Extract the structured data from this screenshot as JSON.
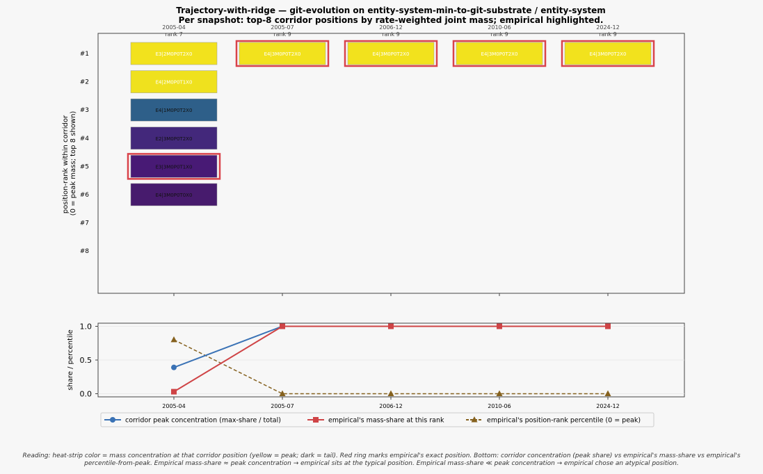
{
  "title_line1": "Trajectory-with-ridge — git-evolution  on  entity-system-min-to-git-substrate  /  entity-system",
  "title_line2": "Per snapshot: top-8 corridor positions by rate-weighted joint mass; empirical highlighted.",
  "caption_line1": "Reading: heat-strip color = mass concentration at that corridor position (yellow = peak; dark = tail).  Red ring marks empirical's exact position. Bottom: corridor concentration (peak share) vs empirical's mass-share vs empirical's",
  "caption_line2": "percentile-from-peak.  Empirical mass-share ≈ peak concentration → empirical sits at the typical position. Empirical mass-share ≪ peak concentration → empirical chose an atypical position.",
  "colors": {
    "empirical_ring": "#d9434a",
    "concentration": "#3a72b5",
    "mass_share": "#cf4446",
    "percentile": "#85611e"
  },
  "chart_data": [
    {
      "type": "heatmap",
      "ylabel": "position-rank within corridor\n(0 = peak mass; top 8 shown)",
      "rank_labels": [
        "#1",
        "#2",
        "#3",
        "#4",
        "#5",
        "#6",
        "#7",
        "#8"
      ],
      "snapshots": [
        {
          "date": "2005-04",
          "rank_label": "rank 7",
          "cells": [
            {
              "rank": 1,
              "label": "E3|2M0P0T2X0",
              "color": "#f2e21d",
              "empirical": false
            },
            {
              "rank": 2,
              "label": "E4|2M0P0T1X0",
              "color": "#efe11e",
              "empirical": false
            },
            {
              "rank": 3,
              "label": "E4|1M0P0T2X0",
              "color": "#2e5f89",
              "empirical": false
            },
            {
              "rank": 4,
              "label": "E2|3M0P0T2X0",
              "color": "#43287b",
              "empirical": false
            },
            {
              "rank": 5,
              "label": "E3|3M0P0T1X0",
              "color": "#481a75",
              "empirical": true
            },
            {
              "rank": 6,
              "label": "E4|3M0P0T0X0",
              "color": "#471b6d",
              "empirical": false
            }
          ]
        },
        {
          "date": "2005-07",
          "rank_label": "rank 9",
          "cells": [
            {
              "rank": 1,
              "label": "E4|3M0P0T2X0",
              "color": "#f2e21d",
              "empirical": true
            }
          ]
        },
        {
          "date": "2006-12",
          "rank_label": "rank 9",
          "cells": [
            {
              "rank": 1,
              "label": "E4|3M0P0T2X0",
              "color": "#f2e21d",
              "empirical": true
            }
          ]
        },
        {
          "date": "2010-06",
          "rank_label": "rank 9",
          "cells": [
            {
              "rank": 1,
              "label": "E4|3M0P0T2X0",
              "color": "#f2e21d",
              "empirical": true
            }
          ]
        },
        {
          "date": "2024-12",
          "rank_label": "rank 9",
          "cells": [
            {
              "rank": 1,
              "label": "E4|3M0P0T2X0",
              "color": "#f2e21d",
              "empirical": true
            }
          ]
        }
      ]
    },
    {
      "type": "line",
      "ylabel": "share / percentile",
      "categories": [
        "2005-04",
        "2005-07",
        "2006-12",
        "2010-06",
        "2024-12"
      ],
      "yticks": [
        "0.0",
        "0.5",
        "1.0"
      ],
      "ylim": [
        -0.05,
        1.05
      ],
      "series": [
        {
          "name": "corridor peak concentration  (max-share / total)",
          "values": [
            0.39,
            1.0,
            1.0,
            1.0,
            1.0
          ],
          "marker": "circle",
          "dash": false
        },
        {
          "name": "empirical's mass-share at this rank",
          "values": [
            0.03,
            1.0,
            1.0,
            1.0,
            1.0
          ],
          "marker": "square",
          "dash": false
        },
        {
          "name": "empirical's position-rank percentile  (0 = peak)",
          "values": [
            0.8,
            0.0,
            0.0,
            0.0,
            0.0
          ],
          "marker": "triangle",
          "dash": true
        }
      ]
    }
  ]
}
